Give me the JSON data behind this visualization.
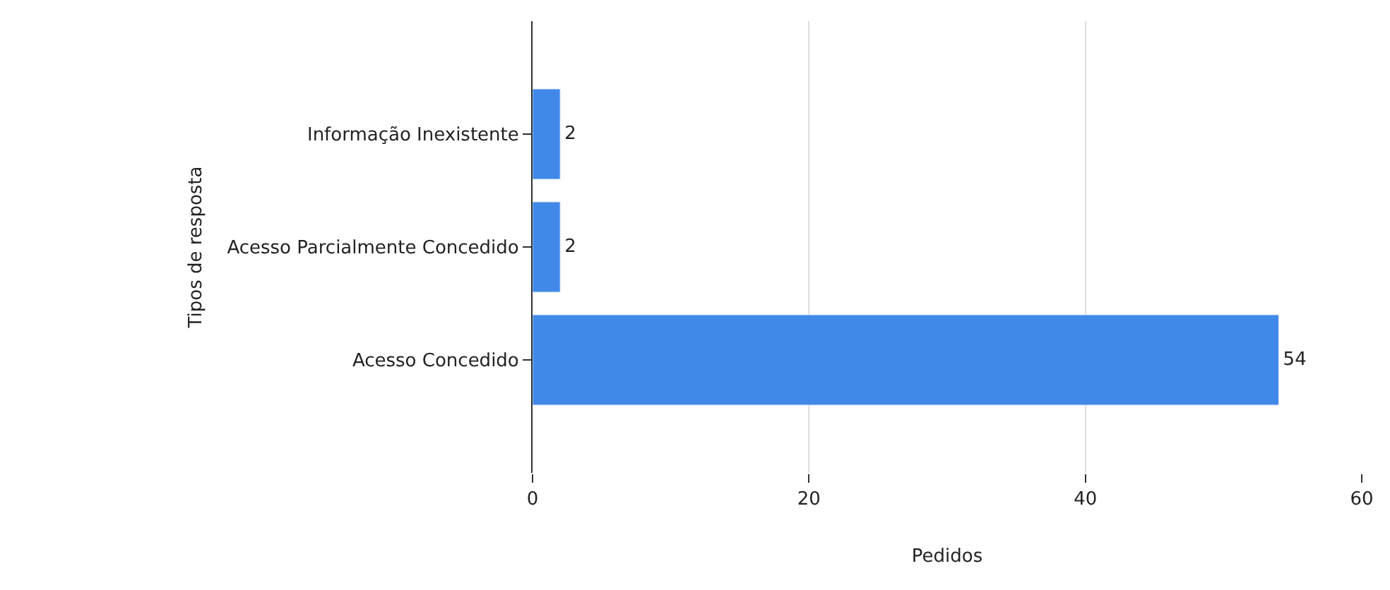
{
  "chart_data": {
    "type": "bar",
    "orientation": "horizontal",
    "xlabel": "Pedidos",
    "ylabel": "Tipos de resposta",
    "categories": [
      "Informação Inexistente",
      "Acesso Parcialmente Concedido",
      "Acesso Concedido"
    ],
    "values": [
      2,
      2,
      54
    ],
    "color": "#4189e8",
    "data_labels": true,
    "xlim": [
      0,
      60
    ],
    "xticks": [
      0,
      20,
      40,
      60
    ],
    "grid": "x",
    "legend": false
  }
}
